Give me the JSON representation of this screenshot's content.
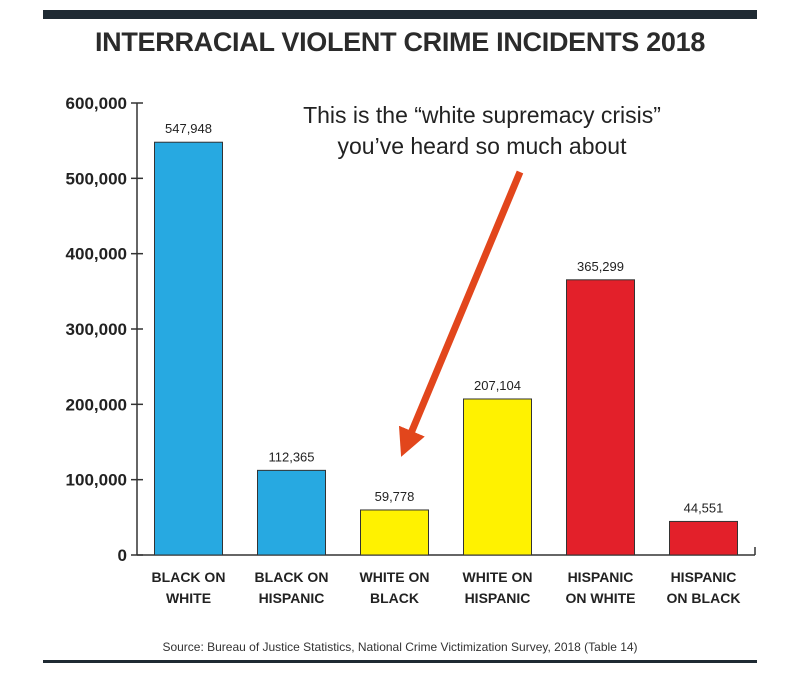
{
  "chart_data": {
    "type": "bar",
    "title": "INTERRACIAL VIOLENT CRIME INCIDENTS 2018",
    "categories": [
      [
        "BLACK ON",
        "WHITE"
      ],
      [
        "BLACK ON",
        "HISPANIC"
      ],
      [
        "WHITE ON",
        "BLACK"
      ],
      [
        "WHITE ON",
        "HISPANIC"
      ],
      [
        "HISPANIC",
        "ON WHITE"
      ],
      [
        "HISPANIC",
        "ON BLACK"
      ]
    ],
    "values": [
      547948,
      112365,
      59778,
      207104,
      365299,
      44551
    ],
    "value_labels": [
      "547,948",
      "112,365",
      "59,778",
      "207,104",
      "365,299",
      "44,551"
    ],
    "bar_colors": [
      "#27a9e1",
      "#27a9e1",
      "#fff200",
      "#fff200",
      "#e3202a",
      "#e3202a"
    ],
    "ylim": [
      0,
      600000
    ],
    "yticks": [
      {
        "value": 0,
        "label": "0"
      },
      {
        "value": 100000,
        "label": "100,000"
      },
      {
        "value": 200000,
        "label": "200,000"
      },
      {
        "value": 300000,
        "label": "300,000"
      },
      {
        "value": 400000,
        "label": "400,000"
      },
      {
        "value": 500000,
        "label": "500,000"
      },
      {
        "value": 600000,
        "label": "600,000"
      }
    ],
    "annotation": [
      "This is the “white supremacy crisis”",
      "you’ve heard so much about"
    ],
    "annotation_arrow_color": "#e2461c",
    "source": "Source: Bureau of Justice Statistics, National Crime Victimization Survey, 2018 (Table 14)",
    "grid": false,
    "legend": "none"
  }
}
